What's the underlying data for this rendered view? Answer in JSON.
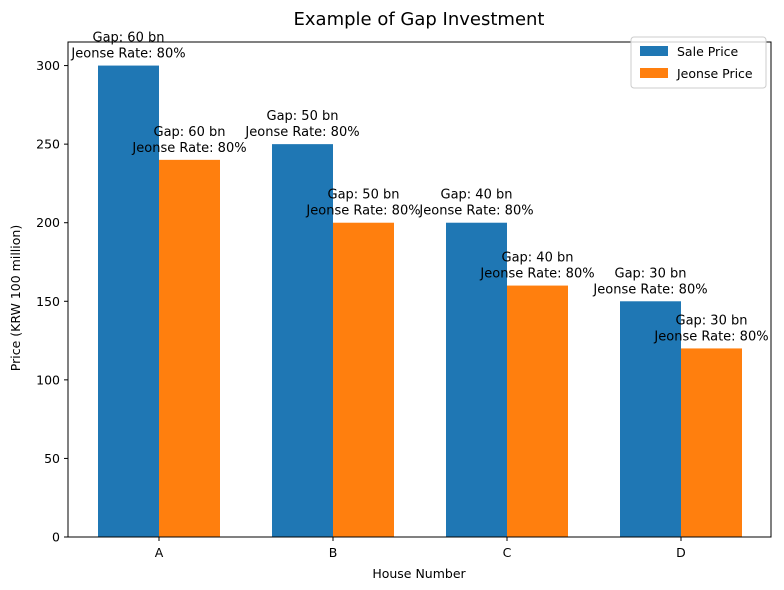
{
  "chart_data": {
    "type": "bar",
    "title": "Example of Gap Investment",
    "xlabel": "House Number",
    "ylabel": "Price (KRW 100 million)",
    "categories": [
      "A",
      "B",
      "C",
      "D"
    ],
    "ylim": [
      0,
      315
    ],
    "yticks": [
      0,
      50,
      100,
      150,
      200,
      250,
      300
    ],
    "grid": false,
    "legend_position": "top-right",
    "series": [
      {
        "name": "Sale Price",
        "color": "#1f77b4",
        "values": [
          300,
          250,
          200,
          150
        ],
        "labels": [
          [
            "Gap: 60 bn",
            "Jeonse Rate: 80%"
          ],
          [
            "Gap: 50 bn",
            "Jeonse Rate: 80%"
          ],
          [
            "Gap: 40 bn",
            "Jeonse Rate: 80%"
          ],
          [
            "Gap: 30 bn",
            "Jeonse Rate: 80%"
          ]
        ]
      },
      {
        "name": "Jeonse Price",
        "color": "#ff7f0e",
        "values": [
          240,
          200,
          160,
          120
        ],
        "labels": [
          [
            "Gap: 60 bn",
            "Jeonse Rate: 80%"
          ],
          [
            "Gap: 50 bn",
            "Jeonse Rate: 80%"
          ],
          [
            "Gap: 40 bn",
            "Jeonse Rate: 80%"
          ],
          [
            "Gap: 30 bn",
            "Jeonse Rate: 80%"
          ]
        ]
      }
    ]
  }
}
